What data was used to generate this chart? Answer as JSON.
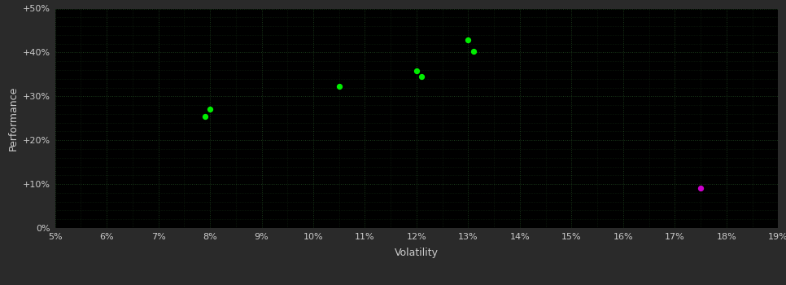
{
  "background_color": "#2a2a2a",
  "plot_bg_color": "#000000",
  "grid_color": "#1a3a1a",
  "xlabel": "Volatility",
  "ylabel": "Performance",
  "xlim": [
    0.05,
    0.19
  ],
  "ylim": [
    0.0,
    0.5
  ],
  "xticks_major": [
    0.05,
    0.06,
    0.07,
    0.08,
    0.09,
    0.1,
    0.11,
    0.12,
    0.13,
    0.14,
    0.15,
    0.16,
    0.17,
    0.18,
    0.19
  ],
  "yticks_major": [
    0.0,
    0.1,
    0.2,
    0.3,
    0.4,
    0.5
  ],
  "green_points": [
    [
      0.08,
      0.27
    ],
    [
      0.079,
      0.254
    ],
    [
      0.105,
      0.323
    ],
    [
      0.12,
      0.358
    ],
    [
      0.121,
      0.345
    ],
    [
      0.13,
      0.428
    ],
    [
      0.131,
      0.403
    ]
  ],
  "magenta_points": [
    [
      0.175,
      0.091
    ]
  ],
  "green_color": "#00ee00",
  "magenta_color": "#cc00cc",
  "point_size": 18,
  "axis_label_fontsize": 9,
  "tick_fontsize": 8,
  "tick_color": "#cccccc",
  "label_color": "#cccccc"
}
